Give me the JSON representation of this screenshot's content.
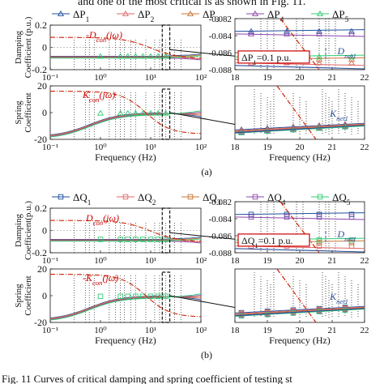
{
  "caption_top": "and one of the most critical is as shown in Fig. 11.",
  "caption_bottom": "Fig. 11 Curves of critical damping and spring coefficient of testing st",
  "colors": {
    "s1": "#1f4e9c",
    "s2": "#e06666",
    "s3": "#c87533",
    "s4": "#8e44ad",
    "s5": "#2ecc71",
    "ref": "#cc2200",
    "annot": "#cc0000",
    "net": "#2a4d9b",
    "axis": "#111111"
  },
  "chart_data": [
    {
      "id": "a",
      "panel_label": "(a)",
      "legend": [
        "ΔP1",
        "ΔP2",
        "ΔP3",
        "ΔP4",
        "ΔP5"
      ],
      "legend_sym": "P",
      "marker": "triangle",
      "left": {
        "type": "line",
        "xlabel": "Frequency (Hz)",
        "xscale": "log",
        "xlim": [
          0.1,
          100
        ],
        "xticks": [
          "10⁻¹",
          "10⁰",
          "10¹",
          "10²"
        ],
        "top": {
          "ylabel": [
            "Damping",
            "Coefficient (p.u.)"
          ],
          "ylim": [
            -0.2,
            0.2
          ],
          "yticks": [
            0.2,
            0,
            -0.2
          ],
          "ref_label": "-D_con(jω)"
        },
        "bottom": {
          "ylabel": [
            "Spring",
            "Coefficient"
          ],
          "ylim": [
            -20,
            20
          ],
          "yticks": [
            20,
            0,
            -20
          ],
          "ref_label": "K_con(jω)"
        }
      },
      "right": {
        "type": "line",
        "xlabel": "Frequency (Hz)",
        "xlim": [
          18,
          22
        ],
        "xticks": [
          18,
          19,
          20,
          21,
          22
        ],
        "top": {
          "ylim": [
            -0.088,
            -0.082
          ],
          "yticks": [
            -0.082,
            -0.084,
            -0.086,
            -0.088
          ],
          "net_label": "D_net1",
          "box_label": "ΔP1=0.1 p.u."
        },
        "bottom": {
          "ylim": [
            -7,
            1
          ],
          "net_label": "K_net1"
        }
      }
    },
    {
      "id": "b",
      "panel_label": "(b)",
      "legend": [
        "ΔQ1",
        "ΔQ2",
        "ΔQ3",
        "ΔQ4",
        "ΔQ5"
      ],
      "legend_sym": "Q",
      "marker": "square",
      "left": {
        "type": "line",
        "xlabel": "Frequency (Hz)",
        "xscale": "log",
        "xlim": [
          0.1,
          100
        ],
        "xticks": [
          "10⁻¹",
          "10⁰",
          "10¹",
          "10²"
        ],
        "top": {
          "ylabel": [
            "Damping",
            "Coefficient(p.u.)"
          ],
          "ylim": [
            -0.2,
            0.2
          ],
          "yticks": [
            0.2,
            0,
            -0.2
          ],
          "ref_label": "D_con(jω)"
        },
        "bottom": {
          "ylabel": [
            "Spring",
            "Coefficient"
          ],
          "ylim": [
            -20,
            20
          ],
          "yticks": [
            20,
            0,
            -20
          ],
          "ref_label": "-K_con(jω)"
        }
      },
      "right": {
        "type": "line",
        "xlabel": "Frequency (Hz)",
        "xlim": [
          18,
          22
        ],
        "xticks": [
          18,
          19,
          20,
          21,
          22
        ],
        "top": {
          "ylim": [
            -0.088,
            -0.082
          ],
          "yticks": [
            -0.082,
            -0.084,
            -0.086,
            -0.088
          ],
          "net_label": "D_net1",
          "box_label": "ΔQ1=0.1 p.u."
        },
        "bottom": {
          "ylim": [
            -7,
            1
          ],
          "net_label": "K_net1"
        }
      }
    }
  ]
}
